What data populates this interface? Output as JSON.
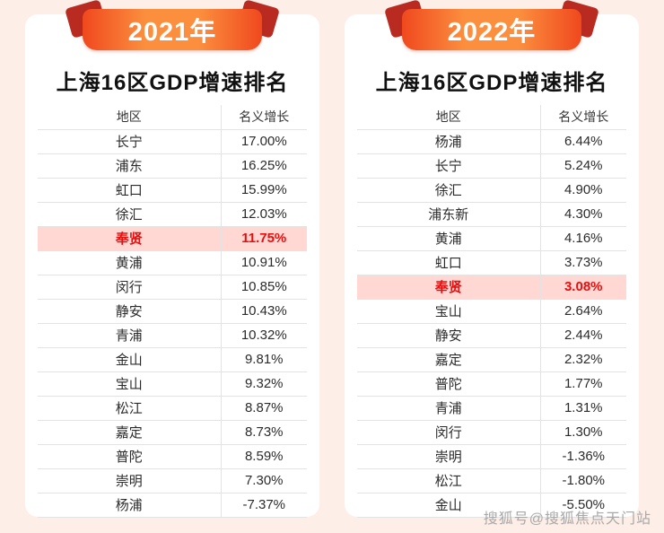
{
  "watermark": "搜狐号@搜狐焦点天门站",
  "colors": {
    "page_bg": "#fdeee7",
    "card_bg": "#ffffff",
    "ribbon_orange_1": "#f0481e",
    "ribbon_orange_2": "#fb8f3e",
    "ribbon_fold": "#b92a20",
    "title_text": "#111111",
    "text": "#2b2b2b",
    "border": "#e3e3e3",
    "highlight_bg": "#ffd8d3",
    "highlight_text": "#e60f0f",
    "watermark": "#a8a8a8"
  },
  "chart_data": [
    {
      "type": "table",
      "year_banner": "2021年",
      "title": "上海16区GDP增速排名",
      "columns": [
        "地区",
        "名义增长"
      ],
      "highlight_row": 4,
      "highlight_district": "奉贤",
      "rows": [
        [
          "长宁",
          "17.00%"
        ],
        [
          "浦东",
          "16.25%"
        ],
        [
          "虹口",
          "15.99%"
        ],
        [
          "徐汇",
          "12.03%"
        ],
        [
          "奉贤",
          "11.75%"
        ],
        [
          "黄浦",
          "10.91%"
        ],
        [
          "闵行",
          "10.85%"
        ],
        [
          "静安",
          "10.43%"
        ],
        [
          "青浦",
          "10.32%"
        ],
        [
          "金山",
          "9.81%"
        ],
        [
          "宝山",
          "9.32%"
        ],
        [
          "松江",
          "8.87%"
        ],
        [
          "嘉定",
          "8.73%"
        ],
        [
          "普陀",
          "8.59%"
        ],
        [
          "崇明",
          "7.30%"
        ],
        [
          "杨浦",
          "-7.37%"
        ]
      ]
    },
    {
      "type": "table",
      "year_banner": "2022年",
      "title": "上海16区GDP增速排名",
      "columns": [
        "地区",
        "名义增长"
      ],
      "highlight_row": 6,
      "highlight_district": "奉贤",
      "rows": [
        [
          "杨浦",
          "6.44%"
        ],
        [
          "长宁",
          "5.24%"
        ],
        [
          "徐汇",
          "4.90%"
        ],
        [
          "浦东新",
          "4.30%"
        ],
        [
          "黄浦",
          "4.16%"
        ],
        [
          "虹口",
          "3.73%"
        ],
        [
          "奉贤",
          "3.08%"
        ],
        [
          "宝山",
          "2.64%"
        ],
        [
          "静安",
          "2.44%"
        ],
        [
          "嘉定",
          "2.32%"
        ],
        [
          "普陀",
          "1.77%"
        ],
        [
          "青浦",
          "1.31%"
        ],
        [
          "闵行",
          "1.30%"
        ],
        [
          "崇明",
          "-1.36%"
        ],
        [
          "松江",
          "-1.80%"
        ],
        [
          "金山",
          "-5.50%"
        ]
      ]
    }
  ]
}
